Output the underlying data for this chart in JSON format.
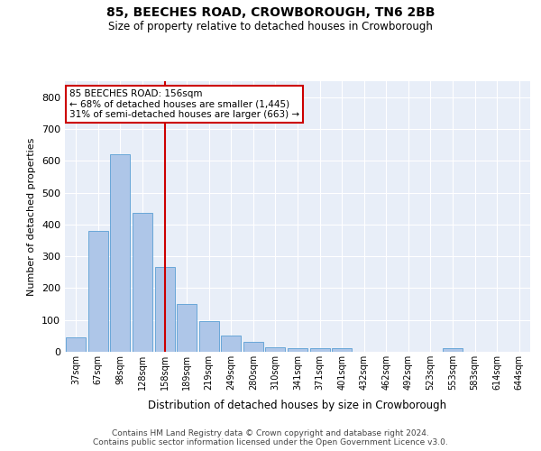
{
  "title": "85, BEECHES ROAD, CROWBOROUGH, TN6 2BB",
  "subtitle": "Size of property relative to detached houses in Crowborough",
  "xlabel": "Distribution of detached houses by size in Crowborough",
  "ylabel": "Number of detached properties",
  "categories": [
    "37sqm",
    "67sqm",
    "98sqm",
    "128sqm",
    "158sqm",
    "189sqm",
    "219sqm",
    "249sqm",
    "280sqm",
    "310sqm",
    "341sqm",
    "371sqm",
    "401sqm",
    "432sqm",
    "462sqm",
    "492sqm",
    "523sqm",
    "553sqm",
    "583sqm",
    "614sqm",
    "644sqm"
  ],
  "values": [
    45,
    380,
    620,
    435,
    265,
    150,
    95,
    50,
    30,
    15,
    10,
    10,
    10,
    0,
    0,
    0,
    0,
    10,
    0,
    0,
    0
  ],
  "bar_color": "#aec6e8",
  "bar_edge_color": "#5a9fd4",
  "marker_line_index": 4,
  "marker_line_color": "#cc0000",
  "annotation_line1": "85 BEECHES ROAD: 156sqm",
  "annotation_line2": "← 68% of detached houses are smaller (1,445)",
  "annotation_line3": "31% of semi-detached houses are larger (663) →",
  "annotation_box_color": "#cc0000",
  "ylim": [
    0,
    850
  ],
  "yticks": [
    0,
    100,
    200,
    300,
    400,
    500,
    600,
    700,
    800
  ],
  "bg_color": "#e8eef8",
  "footer": "Contains HM Land Registry data © Crown copyright and database right 2024.\nContains public sector information licensed under the Open Government Licence v3.0."
}
